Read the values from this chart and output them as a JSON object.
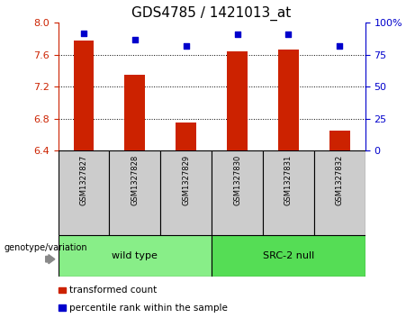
{
  "title": "GDS4785 / 1421013_at",
  "samples": [
    "GSM1327827",
    "GSM1327828",
    "GSM1327829",
    "GSM1327830",
    "GSM1327831",
    "GSM1327832"
  ],
  "red_values": [
    7.78,
    7.35,
    6.75,
    7.64,
    7.67,
    6.65
  ],
  "blue_values": [
    92,
    87,
    82,
    91,
    91,
    82
  ],
  "ylim_left": [
    6.4,
    8.0
  ],
  "ylim_right": [
    0,
    100
  ],
  "left_ticks": [
    6.4,
    6.8,
    7.2,
    7.6,
    8.0
  ],
  "right_ticks": [
    0,
    25,
    50,
    75,
    100
  ],
  "right_tick_labels": [
    "0",
    "25",
    "50",
    "75",
    "100%"
  ],
  "bar_color": "#cc2200",
  "dot_color": "#0000cc",
  "bar_bottom": 6.4,
  "groups": [
    {
      "label": "wild type",
      "indices": [
        0,
        1,
        2
      ],
      "color": "#88ee88"
    },
    {
      "label": "SRC-2 null",
      "indices": [
        3,
        4,
        5
      ],
      "color": "#55dd55"
    }
  ],
  "genotype_label": "genotype/variation",
  "legend_items": [
    {
      "color": "#cc2200",
      "label": "transformed count"
    },
    {
      "color": "#0000cc",
      "label": "percentile rank within the sample"
    }
  ],
  "title_fontsize": 11,
  "tick_fontsize": 8,
  "label_fontsize": 8,
  "background_color": "#ffffff",
  "plot_bg_color": "#ffffff",
  "left_tick_color": "#cc2200",
  "right_tick_color": "#0000cc",
  "sample_box_color": "#cccccc",
  "bar_width": 0.4
}
